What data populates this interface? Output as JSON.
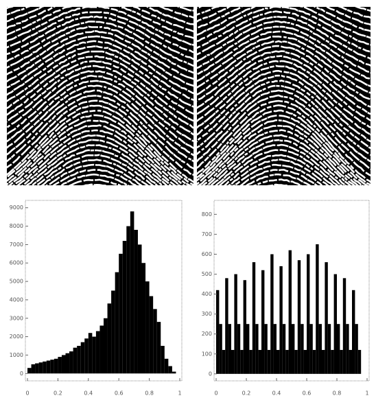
{
  "chart_data": [
    {
      "type": "histogram",
      "color": "#000000",
      "bins": [
        0,
        0.025,
        0.05,
        0.075,
        0.1,
        0.125,
        0.15,
        0.175,
        0.2,
        0.225,
        0.25,
        0.275,
        0.3,
        0.325,
        0.35,
        0.375,
        0.4,
        0.425,
        0.45,
        0.475,
        0.5,
        0.525,
        0.55,
        0.575,
        0.6,
        0.625,
        0.65,
        0.675,
        0.7,
        0.725,
        0.75,
        0.775,
        0.8,
        0.825,
        0.85,
        0.875,
        0.9,
        0.925,
        0.95,
        0.975,
        1
      ],
      "values": [
        300,
        500,
        550,
        600,
        650,
        700,
        750,
        800,
        900,
        1000,
        1100,
        1200,
        1400,
        1500,
        1700,
        1900,
        2200,
        2000,
        2300,
        2600,
        3000,
        3800,
        4500,
        5500,
        6500,
        7200,
        8000,
        8800,
        7800,
        7000,
        6000,
        5000,
        4200,
        3500,
        2800,
        1500,
        800,
        400,
        100,
        0
      ],
      "xlim": [
        0,
        1
      ],
      "ylim": [
        -400,
        9400
      ],
      "xticks": [
        0,
        0.2,
        0.4,
        0.6,
        0.8,
        1
      ],
      "yticks": [
        0,
        1000,
        2000,
        3000,
        4000,
        5000,
        6000,
        7000,
        8000,
        9000
      ]
    },
    {
      "type": "histogram",
      "color": "#000000",
      "bins": [
        0,
        0.02,
        0.04,
        0.06,
        0.08,
        0.1,
        0.12,
        0.14,
        0.16,
        0.18,
        0.2,
        0.22,
        0.24,
        0.26,
        0.28,
        0.3,
        0.32,
        0.34,
        0.36,
        0.38,
        0.4,
        0.42,
        0.44,
        0.46,
        0.48,
        0.5,
        0.52,
        0.54,
        0.56,
        0.58,
        0.6,
        0.62,
        0.64,
        0.66,
        0.68,
        0.7,
        0.72,
        0.74,
        0.76,
        0.78,
        0.8,
        0.82,
        0.84,
        0.86,
        0.88,
        0.9,
        0.92,
        0.94,
        0.96
      ],
      "values": [
        420,
        250,
        120,
        480,
        250,
        120,
        500,
        250,
        120,
        470,
        250,
        120,
        560,
        250,
        120,
        520,
        250,
        120,
        600,
        250,
        120,
        540,
        250,
        120,
        620,
        250,
        120,
        570,
        250,
        120,
        600,
        250,
        120,
        650,
        250,
        120,
        560,
        250,
        120,
        500,
        250,
        120,
        480,
        250,
        120,
        420,
        250,
        120
      ],
      "xlim": [
        0,
        1
      ],
      "ylim": [
        -35,
        870
      ],
      "xticks": [
        0,
        0.2,
        0.4,
        0.6,
        0.8,
        1
      ],
      "yticks": [
        0,
        100,
        200,
        300,
        400,
        500,
        600,
        700,
        800
      ]
    }
  ]
}
